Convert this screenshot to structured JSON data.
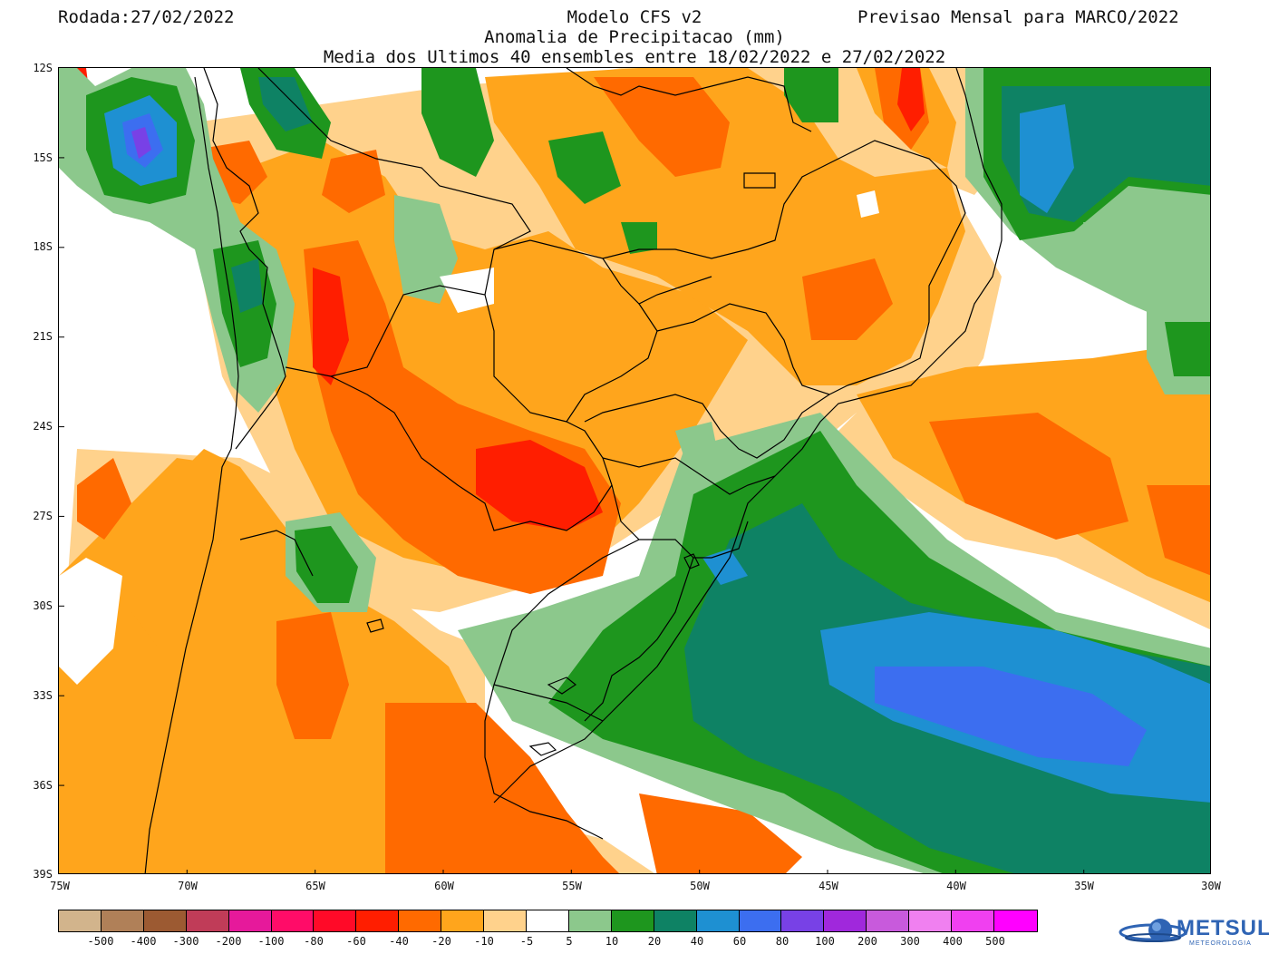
{
  "header": {
    "left": "Rodada:27/02/2022",
    "model": "Modelo CFS v2",
    "right": "Previsao Mensal para MARCO/2022",
    "variable": "Anomalia de Precipitacao (mm)",
    "ensemble": "Media dos Ultimos 40 ensembles entre 18/02/2022 e 27/02/2022"
  },
  "axes": {
    "lat_labels": [
      "12S",
      "15S",
      "18S",
      "21S",
      "24S",
      "27S",
      "30S",
      "33S",
      "36S",
      "39S"
    ],
    "lon_labels": [
      "75W",
      "70W",
      "65W",
      "60W",
      "55W",
      "50W",
      "45W",
      "40W",
      "35W",
      "30W"
    ],
    "lat_range": [
      -39,
      -12
    ],
    "lon_range": [
      -75,
      -30
    ]
  },
  "legend": {
    "colors": [
      "#d2b48c",
      "#b08058",
      "#9c5a32",
      "#c03c58",
      "#e6199b",
      "#ff0c68",
      "#ff0a28",
      "#ff1e00",
      "#ff6a00",
      "#ffa51c",
      "#ffd28c",
      "#ffffff",
      "#8cc88c",
      "#1e961e",
      "#0e8264",
      "#1e90d2",
      "#3c6ef0",
      "#7841e6",
      "#a028dc",
      "#c85adc",
      "#f080f0",
      "#f040f0",
      "#ff00ff"
    ],
    "labels": [
      "-500",
      "-400",
      "-300",
      "-200",
      "-100",
      "-80",
      "-60",
      "-40",
      "-20",
      "-10",
      "-5",
      "5",
      "10",
      "20",
      "40",
      "60",
      "80",
      "100",
      "200",
      "300",
      "400",
      "500"
    ]
  },
  "branding": {
    "name": "METSUL",
    "tagline": "METEOROLOGIA"
  }
}
